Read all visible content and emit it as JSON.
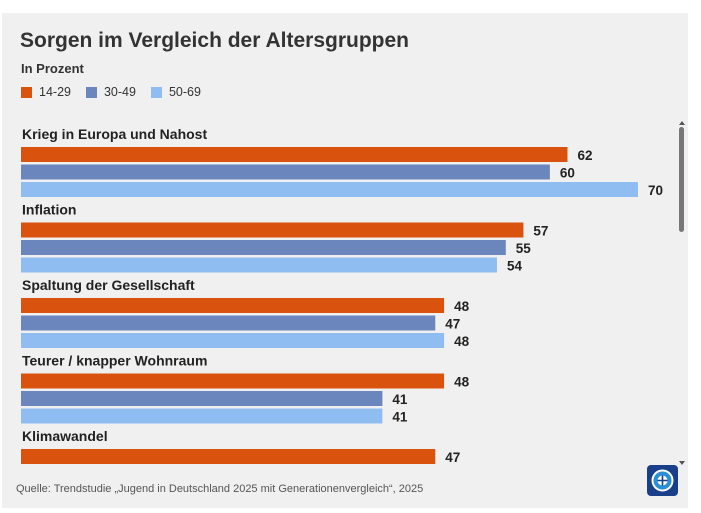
{
  "chart_data": {
    "type": "bar",
    "orientation": "horizontal",
    "title": "Sorgen im Vergleich der Altersgruppen",
    "subtitle": "In Prozent",
    "categories": [
      "Krieg in Europa und Nahost",
      "Inflation",
      "Spaltung der Gesellschaft",
      "Teurer / knapper Wohnraum",
      "Klimawandel"
    ],
    "series": [
      {
        "name": "14-29",
        "color": "#d9530f",
        "values": [
          62,
          57,
          48,
          48,
          47
        ]
      },
      {
        "name": "30-49",
        "color": "#6b86bd",
        "values": [
          60,
          55,
          47,
          41,
          null
        ]
      },
      {
        "name": "50-69",
        "color": "#8fbdf2",
        "values": [
          70,
          54,
          48,
          41,
          null
        ]
      }
    ],
    "xlim": [
      0,
      70
    ],
    "grid": false,
    "legend_position": "top-left",
    "source": "Quelle: Trendstudie „Jugend in Deutschland 2025 mit Generationenvergleich“, 2025"
  },
  "logo": {
    "color": "#1a3f8a",
    "icon": "broadcaster-logo-icon"
  },
  "scrollbar": {
    "color": "#777777"
  }
}
